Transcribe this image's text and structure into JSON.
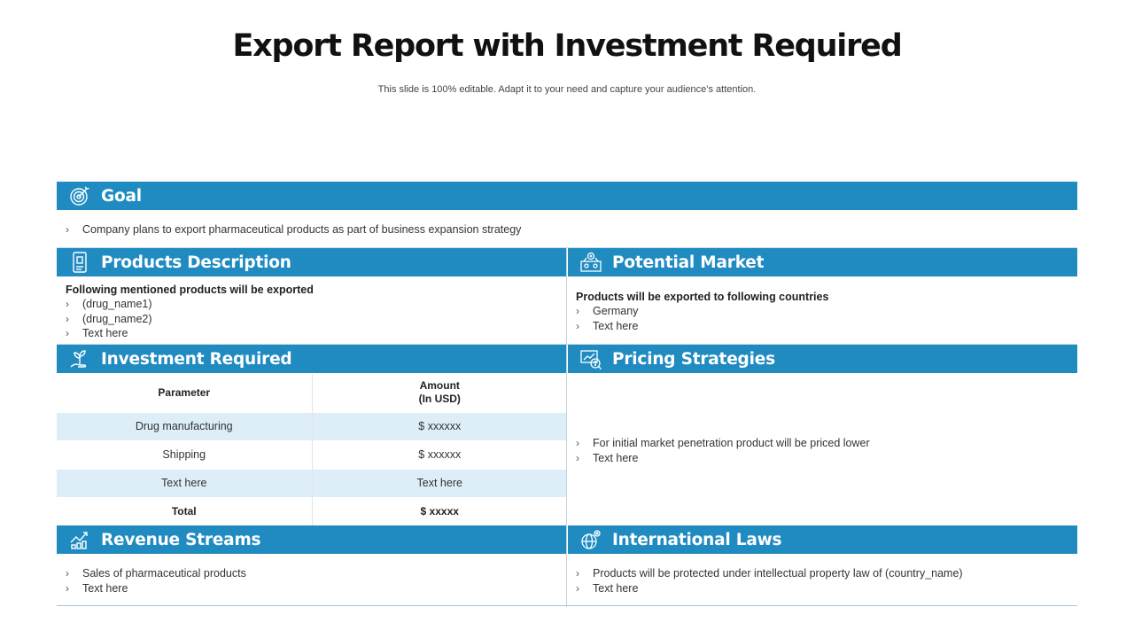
{
  "header": {
    "title": "Export Report with Investment Required",
    "subtitle": "This slide is 100% editable. Adapt it to your need and capture your audience’s attention."
  },
  "goal": {
    "heading": "Goal",
    "icon": "target-icon",
    "items": [
      "Company plans to export pharmaceutical products as part of business expansion strategy"
    ]
  },
  "products": {
    "heading": "Products Description",
    "icon": "document-icon",
    "lead": "Following mentioned products will be exported",
    "items": [
      "(drug_name1)",
      "(drug_name2)",
      "Text here"
    ]
  },
  "market": {
    "heading": "Potential Market",
    "icon": "market-icon",
    "lead": "Products will be exported to following countries",
    "items": [
      "Germany",
      "Text here"
    ]
  },
  "investment": {
    "heading": "Investment Required",
    "icon": "plant-coin-icon",
    "col_parameter": "Parameter",
    "col_amount_line1": "Amount",
    "col_amount_line2": "(In USD)",
    "rows": [
      {
        "parameter": "Drug manufacturing",
        "amount": "$ xxxxxx"
      },
      {
        "parameter": "Shipping",
        "amount": "$ xxxxxx"
      },
      {
        "parameter": "Text here",
        "amount": "Text here"
      }
    ],
    "total_label": "Total",
    "total_amount": "$ xxxxx"
  },
  "pricing": {
    "heading": "Pricing Strategies",
    "icon": "pricing-icon",
    "items": [
      "For initial market penetration product will be priced lower",
      "Text here"
    ]
  },
  "revenue": {
    "heading": "Revenue Streams",
    "icon": "growth-chart-icon",
    "items": [
      "Sales of pharmaceutical products",
      "Text here"
    ]
  },
  "laws": {
    "heading": "International Laws",
    "icon": "globe-gear-icon",
    "items": [
      "Products will be protected under intellectual property law of (country_name)",
      "Text here"
    ]
  },
  "colors": {
    "bar": "#1f8bc1",
    "row_shade": "#ddeef9",
    "divider": "#c7d3dc"
  }
}
